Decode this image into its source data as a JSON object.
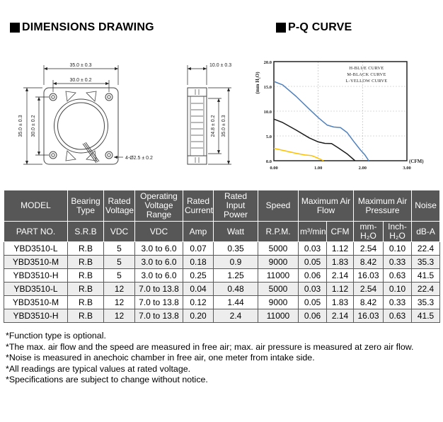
{
  "headings": {
    "dimensions": "DIMENSIONS DRAWING",
    "pq": "P-Q CURVE"
  },
  "drawing": {
    "front": {
      "width_outer": "35.0 ± 0.3",
      "width_inner": "30.0 ± 0.2",
      "height_outer": "35.0 ± 0.3",
      "height_inner": "30.0 ± 0.2",
      "holes": "4-Ø2.5 ± 0.2"
    },
    "side": {
      "depth": "10.0 ± 0.3",
      "inner_height": "24.8 ± 0.2",
      "outer_height": "35.0 ± 0.3"
    }
  },
  "chart_data": {
    "type": "line",
    "title": "P-Q CURVE",
    "xlabel": "(CFM)",
    "ylabel": "(mm H₂O)",
    "xlim": [
      0,
      3
    ],
    "ylim": [
      0,
      20
    ],
    "xticks": [
      "0.00",
      "1.00",
      "2.00",
      "3.00"
    ],
    "yticks": [
      "0.0",
      "5.0",
      "10.0",
      "15.0",
      "20.0"
    ],
    "grid": true,
    "legend_position": "top-right",
    "legend": [
      "H-BLUE CURVE",
      "M-BLACK CURVE",
      "L-YELLOW CURVE"
    ],
    "series": [
      {
        "name": "H",
        "color": "#4f81bd",
        "points": [
          [
            0,
            16.0
          ],
          [
            0.2,
            15.3
          ],
          [
            0.5,
            13.0
          ],
          [
            0.8,
            10.4
          ],
          [
            1.0,
            8.7
          ],
          [
            1.2,
            7.2
          ],
          [
            1.35,
            6.8
          ],
          [
            1.5,
            6.7
          ],
          [
            1.65,
            5.7
          ],
          [
            1.8,
            3.9
          ],
          [
            1.95,
            2.2
          ],
          [
            2.05,
            1.2
          ],
          [
            2.14,
            0
          ]
        ]
      },
      {
        "name": "M",
        "color": "#1a1a1a",
        "points": [
          [
            0,
            8.4
          ],
          [
            0.2,
            7.7
          ],
          [
            0.5,
            6.2
          ],
          [
            0.8,
            4.6
          ],
          [
            1.0,
            3.8
          ],
          [
            1.15,
            3.5
          ],
          [
            1.3,
            3.45
          ],
          [
            1.45,
            2.6
          ],
          [
            1.65,
            1.4
          ],
          [
            1.83,
            0
          ]
        ]
      },
      {
        "name": "L",
        "color": "#ffc000",
        "points": [
          [
            0,
            2.5
          ],
          [
            0.25,
            2.0
          ],
          [
            0.5,
            1.5
          ],
          [
            0.7,
            1.15
          ],
          [
            0.85,
            1.05
          ],
          [
            1.0,
            0.5
          ],
          [
            1.12,
            0
          ]
        ]
      }
    ]
  },
  "table": {
    "header": {
      "model": "MODEL",
      "bearing": "Bearing Type",
      "rated_voltage": "Rated Voltage",
      "ovr": "Operating Voltage Range",
      "rated_current": "Rated Current",
      "rated_power": "Rated Input Power",
      "speed": "Speed",
      "max_airflow": "Maximum Air Flow",
      "max_pressure": "Maximum Air Pressure",
      "noise": "Noise"
    },
    "units": {
      "part_no": "PART NO.",
      "bearing": "S.R.B",
      "rated_voltage": "VDC",
      "ovr": "VDC",
      "rated_current": "Amp",
      "rated_power": "Watt",
      "speed": "R.P.M.",
      "airflow_m3": "m³/min",
      "airflow_cfm": "CFM",
      "pressure_mm": "mm-H₂O",
      "pressure_inch": "Inch-H₂O",
      "noise": "dB-A"
    },
    "rows": [
      [
        "YBD3510-L",
        "R.B",
        "5",
        "3.0 to 6.0",
        "0.07",
        "0.35",
        "5000",
        "0.03",
        "1.12",
        "2.54",
        "0.10",
        "22.4"
      ],
      [
        "YBD3510-M",
        "R.B",
        "5",
        "3.0 to 6.0",
        "0.18",
        "0.9",
        "9000",
        "0.05",
        "1.83",
        "8.42",
        "0.33",
        "35.3"
      ],
      [
        "YBD3510-H",
        "R.B",
        "5",
        "3.0 to 6.0",
        "0.25",
        "1.25",
        "11000",
        "0.06",
        "2.14",
        "16.03",
        "0.63",
        "41.5"
      ],
      [
        "YBD3510-L",
        "R.B",
        "12",
        "7.0 to 13.8",
        "0.04",
        "0.48",
        "5000",
        "0.03",
        "1.12",
        "2.54",
        "0.10",
        "22.4"
      ],
      [
        "YBD3510-M",
        "R.B",
        "12",
        "7.0 to 13.8",
        "0.12",
        "1.44",
        "9000",
        "0.05",
        "1.83",
        "8.42",
        "0.33",
        "35.3"
      ],
      [
        "YBD3510-H",
        "R.B",
        "12",
        "7.0 to 13.8",
        "0.20",
        "2.4",
        "11000",
        "0.06",
        "2.14",
        "16.03",
        "0.63",
        "41.5"
      ]
    ]
  },
  "footnotes": [
    "*Function type is optional.",
    "*The max. air flow and the speed are measured in free air; max. air pressure is measured at zero air flow.",
    "*Noise is measured in anechoic chamber in free air, one meter from intake side.",
    "*All readings are typical values at rated voltage.",
    "*Specifications are subject to change without notice."
  ]
}
